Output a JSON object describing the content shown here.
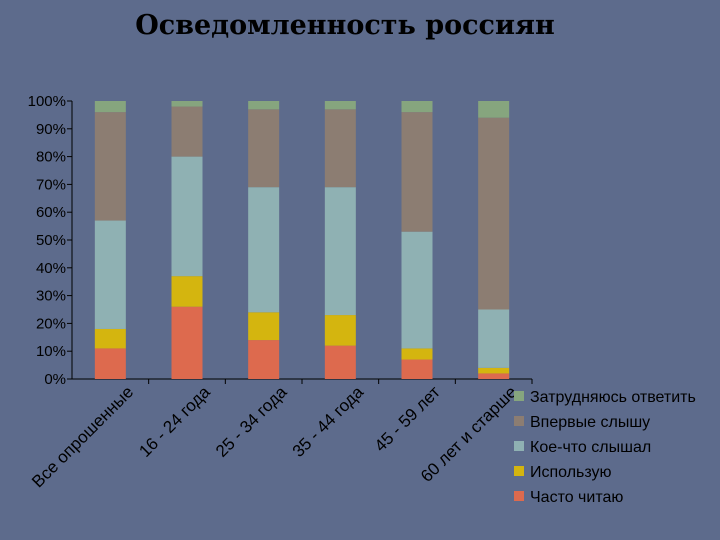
{
  "chart_data": {
    "type": "bar",
    "stacked": true,
    "title": "Осведомленность россиян",
    "categories": [
      "Все опрошенные",
      "16 - 24 года",
      "25 - 34 года",
      "35 - 44 года",
      "45 - 59 лет",
      "60 лет и старше"
    ],
    "series": [
      {
        "name": "Часто читаю",
        "color": "#dd6a4e",
        "values": [
          11,
          26,
          14,
          12,
          7,
          2
        ]
      },
      {
        "name": "Использую",
        "color": "#d4b50f",
        "values": [
          7,
          11,
          10,
          11,
          4,
          2
        ]
      },
      {
        "name": "Кое-что слышал",
        "color": "#8fb1b3",
        "values": [
          39,
          43,
          45,
          46,
          42,
          21
        ]
      },
      {
        "name": "Впервые слышу",
        "color": "#8c7d72",
        "values": [
          39,
          18,
          28,
          28,
          43,
          69
        ]
      },
      {
        "name": "Затрудняюсь ответить",
        "color": "#86a57e",
        "values": [
          4,
          2,
          3,
          3,
          4,
          6
        ]
      }
    ],
    "y_ticks": [
      "0%",
      "10%",
      "20%",
      "30%",
      "40%",
      "50%",
      "60%",
      "70%",
      "80%",
      "90%",
      "100%"
    ],
    "ylim": [
      0,
      100
    ],
    "legend_position": "right",
    "legend_order": [
      "Затрудняюсь ответить",
      "Впервые слышу",
      "Кое-что слышал",
      "Использую",
      "Часто читаю"
    ]
  }
}
